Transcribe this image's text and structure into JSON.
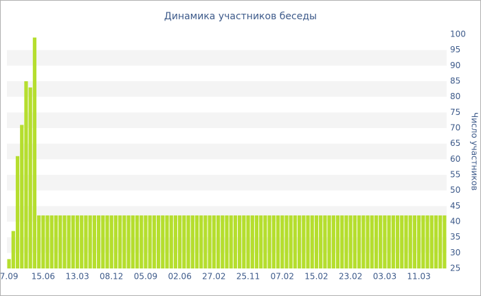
{
  "chart_data": {
    "type": "bar",
    "title": "Динамика участников беседы",
    "y_axis_label": "Число участников",
    "categories": [
      "7.09",
      null,
      null,
      null,
      null,
      null,
      null,
      null,
      "15.06",
      null,
      null,
      null,
      null,
      null,
      null,
      null,
      "13.03",
      null,
      null,
      null,
      null,
      null,
      null,
      null,
      "08.12",
      null,
      null,
      null,
      null,
      null,
      null,
      null,
      "05.09",
      null,
      null,
      null,
      null,
      null,
      null,
      null,
      "02.06",
      null,
      null,
      null,
      null,
      null,
      null,
      null,
      "27.02",
      null,
      null,
      null,
      null,
      null,
      null,
      null,
      "25.11",
      null,
      null,
      null,
      null,
      null,
      null,
      null,
      "07.02",
      null,
      null,
      null,
      null,
      null,
      null,
      null,
      "15.02",
      null,
      null,
      null,
      null,
      null,
      null,
      null,
      "23.02",
      null,
      null,
      null,
      null,
      null,
      null,
      null,
      "03.03",
      null,
      null,
      null,
      null,
      null,
      null,
      null,
      "11.03",
      null,
      null,
      null,
      null,
      null,
      null
    ],
    "values": [
      28,
      37,
      61,
      71,
      85,
      83,
      99,
      42,
      42,
      42,
      42,
      42,
      42,
      42,
      42,
      42,
      42,
      42,
      42,
      42,
      42,
      42,
      42,
      42,
      42,
      42,
      42,
      42,
      42,
      42,
      42,
      42,
      42,
      42,
      42,
      42,
      42,
      42,
      42,
      42,
      42,
      42,
      42,
      42,
      42,
      42,
      42,
      42,
      42,
      42,
      42,
      42,
      42,
      42,
      42,
      42,
      42,
      42,
      42,
      42,
      42,
      42,
      42,
      42,
      42,
      42,
      42,
      42,
      42,
      42,
      42,
      42,
      42,
      42,
      42,
      42,
      42,
      42,
      42,
      42,
      42,
      42,
      42,
      42,
      42,
      42,
      42,
      42,
      42,
      42,
      42,
      42,
      42,
      42,
      42,
      42,
      42,
      42,
      42,
      42,
      42,
      42,
      42
    ],
    "color": "#b5de2e",
    "ylim": [
      25,
      100
    ],
    "yticks": [
      25,
      30,
      35,
      40,
      45,
      50,
      55,
      60,
      65,
      70,
      75,
      80,
      85,
      90,
      95,
      100
    ],
    "grid": "bands",
    "y_axis_side": "right"
  }
}
